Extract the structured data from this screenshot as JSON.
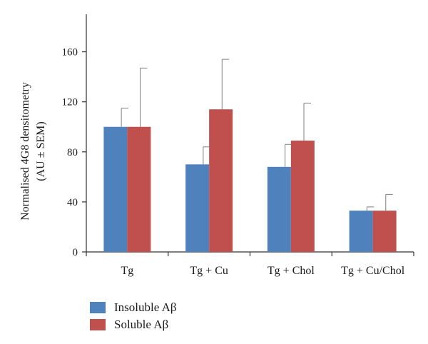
{
  "chart_data": {
    "type": "bar",
    "categories": [
      "Tg",
      "Tg + Cu",
      "Tg + Chol",
      "Tg + Cu/Chol"
    ],
    "series": [
      {
        "name": "Insoluble Aβ",
        "color": "#4f81bd",
        "values": [
          100,
          70,
          68,
          33
        ],
        "errors": [
          15,
          14,
          18,
          3
        ]
      },
      {
        "name": "Soluble Aβ",
        "color": "#c0504d",
        "values": [
          100,
          114,
          89,
          33
        ],
        "errors": [
          47,
          40,
          30,
          13
        ]
      }
    ],
    "ylabel_lines": [
      "Normalised 4G8 densitometry",
      "(AU ± SEM)"
    ],
    "xlabel": "",
    "ylim": [
      0,
      190
    ],
    "yticks": [
      "0",
      "40",
      "80",
      "120",
      "160"
    ],
    "grid": false,
    "legend_position": "bottom-left"
  }
}
